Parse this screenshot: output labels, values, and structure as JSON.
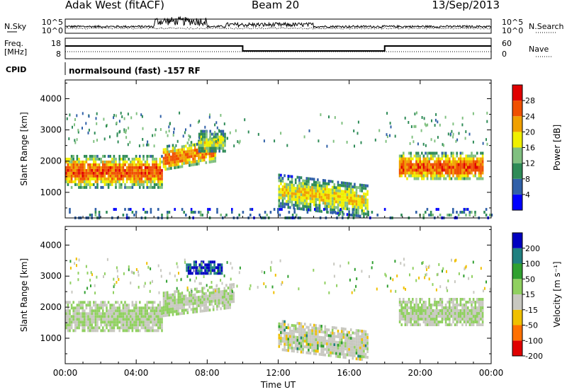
{
  "header": {
    "radar": "Adak West (fitACF)",
    "beam": "Beam 20",
    "date": "13/Sep/2013"
  },
  "noise_panel": {
    "left_label": "N.Sky",
    "right_label": "N.Search",
    "ticks_left": [
      "10^5",
      "10^0"
    ],
    "ticks_right": [
      "10^5",
      "10^0"
    ]
  },
  "freq_panel": {
    "left_label_1": "Freq.",
    "left_label_2": "[MHz]",
    "right_label": "Nave",
    "ticks_left": [
      "18",
      "8"
    ],
    "ticks_right": [
      "60",
      "0"
    ]
  },
  "cpid": {
    "label": "CPID",
    "text": "normalsound (fast) -157 RF"
  },
  "time_axis": {
    "ticks": [
      "00:00",
      "04:00",
      "08:00",
      "12:00",
      "16:00",
      "20:00",
      "00:00"
    ],
    "label": "Time UT"
  },
  "chart_data": [
    {
      "type": "heatmap",
      "title": "",
      "xlabel": "Time UT",
      "ylabel": "Slant Range [km]",
      "xlim": [
        0,
        24
      ],
      "ylim": [
        180,
        4600
      ],
      "yticks": [
        "1000",
        "2000",
        "3000",
        "4000"
      ],
      "colorbar": {
        "label": "Power [dB]",
        "ticks": [
          "28",
          "24",
          "20",
          "16",
          "12",
          "8",
          "4"
        ],
        "range": [
          0,
          32
        ],
        "colors": [
          "#0000ff",
          "#3060a8",
          "#2e8b57",
          "#80c080",
          "#f0f000",
          "#f0a000",
          "#f05000",
          "#e00000"
        ]
      },
      "regions": [
        {
          "name": "main_echo",
          "t": [
            0.0,
            5.5
          ],
          "r": [
            1200,
            2200
          ],
          "p": 22
        },
        {
          "name": "rising_band",
          "t": [
            5.5,
            8.5
          ],
          "r": [
            1700,
            2500
          ],
          "p": 20
        },
        {
          "name": "upper_patch",
          "t": [
            7.5,
            9.0
          ],
          "r": [
            2300,
            3000
          ],
          "p": 14
        },
        {
          "name": "descending_band",
          "t": [
            12.0,
            17.0
          ],
          "r": [
            600,
            1600
          ],
          "p": 16
        },
        {
          "name": "evening_echo",
          "t": [
            18.8,
            23.5
          ],
          "r": [
            1400,
            2300
          ],
          "p": 22
        },
        {
          "name": "ground_scatter_low",
          "t": [
            0.0,
            24.0
          ],
          "r": [
            180,
            500
          ],
          "p": 8
        }
      ]
    },
    {
      "type": "heatmap",
      "title": "",
      "xlabel": "Time UT",
      "ylabel": "Slant Range [km]",
      "xlim": [
        0,
        24
      ],
      "ylim": [
        180,
        4600
      ],
      "yticks": [
        "1000",
        "2000",
        "3000",
        "4000"
      ],
      "colorbar": {
        "label": "Velocity [m s⁻¹]",
        "ticks": [
          "200",
          "100",
          "50",
          "15",
          "-15",
          "-50",
          "-100",
          "-200"
        ],
        "range": [
          -250,
          250
        ],
        "colors": [
          "#e00000",
          "#ff7000",
          "#f0c000",
          "#c8c8c0",
          "#90d060",
          "#30a030",
          "#208080",
          "#0000c0"
        ]
      },
      "regions": [
        {
          "name": "main_echo",
          "t": [
            0.0,
            5.5
          ],
          "r": [
            1200,
            2200
          ],
          "v": 0
        },
        {
          "name": "rising_band",
          "t": [
            5.5,
            9.5
          ],
          "r": [
            1700,
            2500
          ],
          "v": 0
        },
        {
          "name": "blue_patch",
          "t": [
            6.8,
            8.8
          ],
          "r": [
            3100,
            3500
          ],
          "v": 200
        },
        {
          "name": "descending_band",
          "t": [
            12.0,
            17.0
          ],
          "r": [
            600,
            1600
          ],
          "v": -30
        },
        {
          "name": "evening_echo",
          "t": [
            18.8,
            23.5
          ],
          "r": [
            1400,
            2300
          ],
          "v": 0
        }
      ]
    }
  ]
}
